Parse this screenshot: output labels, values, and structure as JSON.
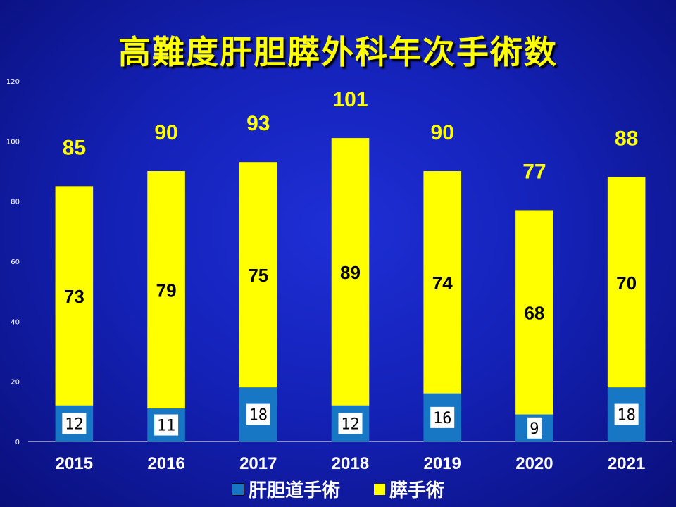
{
  "chart_data": {
    "type": "bar",
    "stacked": true,
    "title": "高難度肝胆膵外科年次手術数",
    "categories": [
      "2015",
      "2016",
      "2017",
      "2018",
      "2019",
      "2020",
      "2021"
    ],
    "series": [
      {
        "name": "肝胆道手術",
        "values": [
          12,
          11,
          18,
          12,
          16,
          9,
          18
        ],
        "color": "#1777c4"
      },
      {
        "name": "膵手術",
        "values": [
          73,
          79,
          75,
          89,
          74,
          68,
          70
        ],
        "color": "#ffff00"
      }
    ],
    "totals": [
      85,
      90,
      93,
      101,
      90,
      77,
      88
    ],
    "ylim": [
      0,
      120
    ],
    "yticks": [
      0,
      20,
      40,
      60,
      80,
      100,
      120
    ],
    "legend_position": "bottom",
    "grid": false
  }
}
